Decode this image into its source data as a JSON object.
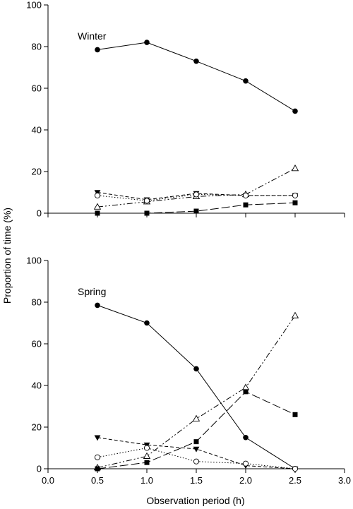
{
  "chart_data": [
    {
      "type": "line",
      "panel_label": "Winter",
      "x": [
        0.5,
        1.0,
        1.5,
        2.0,
        2.5
      ],
      "xlim": [
        0.0,
        3.0
      ],
      "ylim": [
        0,
        100
      ],
      "x_ticks": [
        "0.0",
        "0.5",
        "1.0",
        "1.5",
        "2.0",
        "2.5",
        "3.0"
      ],
      "y_ticks": [
        "0",
        "20",
        "40",
        "60",
        "80",
        "100"
      ],
      "show_x_tick_labels": false,
      "grid": false,
      "legend": "none",
      "series": [
        {
          "marker": "filled-circle",
          "line": "solid",
          "values": [
            78.5,
            82,
            73,
            63.5,
            49
          ]
        },
        {
          "marker": "open-triangle-up",
          "line": "dash-dot-dot",
          "values": [
            3,
            5.5,
            8,
            9,
            21.5
          ]
        },
        {
          "marker": "filled-triangle-down",
          "line": "short-dash",
          "values": [
            10,
            6.5,
            9.5,
            8.5,
            8.5
          ]
        },
        {
          "marker": "open-circle",
          "line": "dotted",
          "values": [
            8.5,
            6,
            9,
            8.5,
            8.5
          ]
        },
        {
          "marker": "filled-square",
          "line": "long-dash",
          "values": [
            0,
            0,
            1,
            4,
            5
          ]
        }
      ]
    },
    {
      "type": "line",
      "panel_label": "Spring",
      "x": [
        0.5,
        1.0,
        1.5,
        2.0,
        2.5
      ],
      "xlim": [
        0.0,
        3.0
      ],
      "ylim": [
        0,
        100
      ],
      "x_ticks": [
        "0.0",
        "0.5",
        "1.0",
        "1.5",
        "2.0",
        "2.5",
        "3.0"
      ],
      "y_ticks": [
        "0",
        "20",
        "40",
        "60",
        "80",
        "100"
      ],
      "show_x_tick_labels": true,
      "grid": false,
      "legend": "none",
      "series": [
        {
          "marker": "filled-circle",
          "line": "solid",
          "values": [
            78.5,
            70,
            48,
            15,
            0
          ]
        },
        {
          "marker": "open-triangle-up",
          "line": "dash-dot-dot",
          "values": [
            0.5,
            6,
            24,
            39,
            73.5
          ]
        },
        {
          "marker": "filled-triangle-down",
          "line": "short-dash",
          "values": [
            15,
            11.5,
            9.5,
            1.5,
            0
          ]
        },
        {
          "marker": "open-circle",
          "line": "dotted",
          "values": [
            5.5,
            10,
            3.5,
            2.5,
            0
          ]
        },
        {
          "marker": "filled-square",
          "line": "long-dash",
          "values": [
            0,
            3,
            13,
            37,
            26
          ]
        }
      ]
    }
  ],
  "axes": {
    "ylabel": "Proportion of time (%)",
    "xlabel": "Observation period (h)"
  }
}
